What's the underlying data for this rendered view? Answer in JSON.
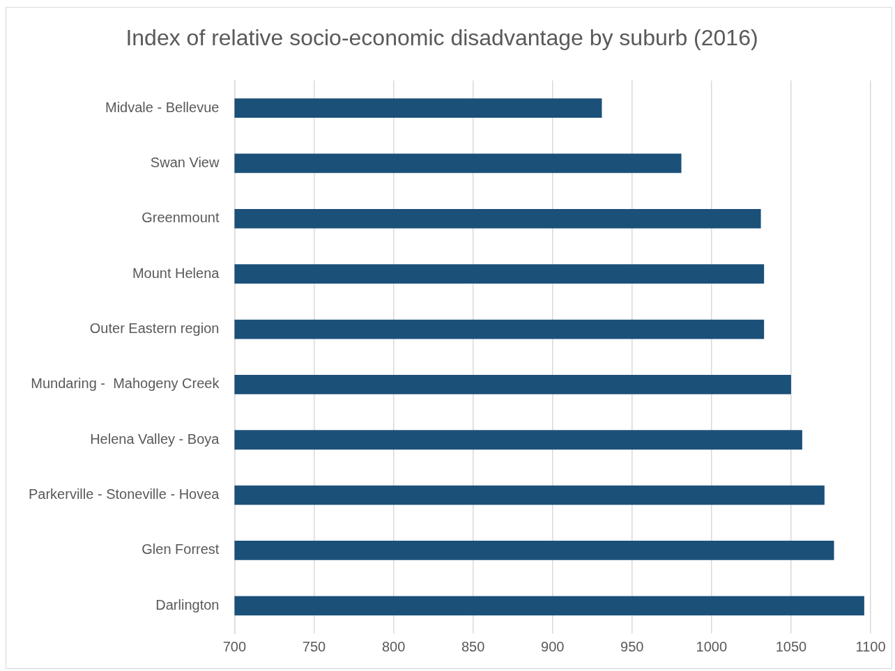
{
  "chart_data": {
    "type": "bar",
    "orientation": "horizontal",
    "title": "Index of relative socio-economic disadvantage by suburb (2016)",
    "categories": [
      "Midvale - Bellevue",
      "Swan View",
      "Greenmount",
      "Mount Helena",
      "Outer Eastern region",
      "Mundaring -  Mahogeny Creek",
      "Helena Valley - Boya",
      "Parkerville - Stoneville - Hovea",
      "Glen Forrest",
      "Darlington"
    ],
    "values": [
      931,
      981,
      1031,
      1033,
      1033,
      1050,
      1057,
      1071,
      1077,
      1096
    ],
    "color": "#1b5079",
    "xlim": [
      700,
      1100
    ],
    "xticks": [
      700,
      750,
      800,
      850,
      900,
      950,
      1000,
      1050,
      1100
    ],
    "grid": "x",
    "legend": false
  }
}
